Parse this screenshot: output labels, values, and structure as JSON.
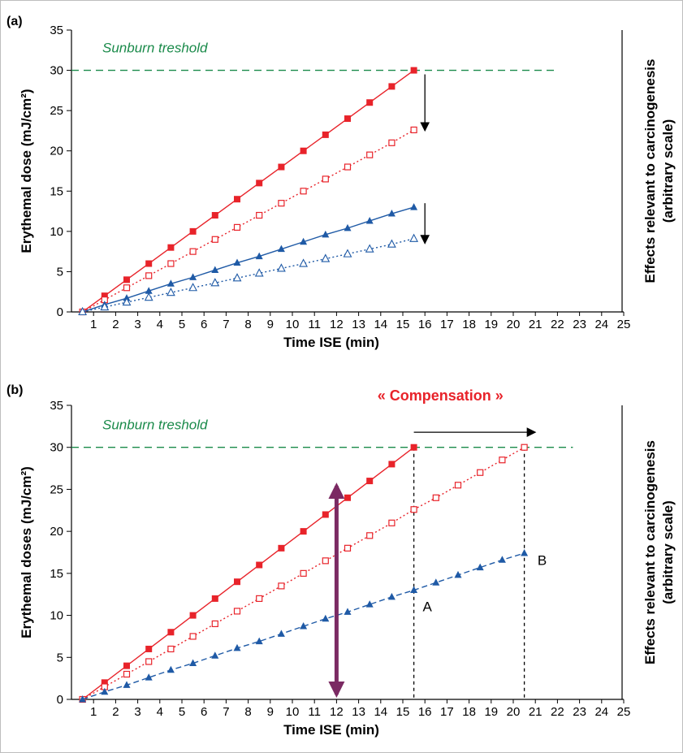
{
  "colors": {
    "red": "#e8232a",
    "blue": "#1f5aa6",
    "green": "#1a8a4a",
    "purple": "#7b2a63",
    "black": "#000000"
  },
  "chart_data": [
    {
      "panel_label": "(a)",
      "type": "line",
      "ylabel": "Erythemal dose (mJ/cm²)",
      "xlabel": "Time ISE (min)",
      "right_label_line1": "Effects relevant to carcinogenesis",
      "right_label_line2": "(arbitrary scale)",
      "threshold_label": "Sunburn treshold",
      "threshold_value": 30,
      "x_ticks": [
        "1",
        "2",
        "3",
        "4",
        "5",
        "6",
        "7",
        "8",
        "9",
        "10",
        "11",
        "12",
        "13",
        "14",
        "15",
        "16",
        "17",
        "18",
        "19",
        "20",
        "21",
        "22",
        "23",
        "24",
        "25"
      ],
      "y_ticks": [
        "0",
        "5",
        "10",
        "15",
        "20",
        "25",
        "30",
        "35"
      ],
      "xlim": [
        0,
        25
      ],
      "ylim": [
        0,
        35
      ],
      "grid": false,
      "series": [
        {
          "x": [
            0.5,
            1.5,
            2.5,
            3.5,
            4.5,
            5.5,
            6.5,
            7.5,
            8.5,
            9.5,
            10.5,
            11.5,
            12.5,
            13.5,
            14.5,
            15.5
          ],
          "values": [
            0,
            2,
            4,
            6,
            8,
            10,
            12,
            14,
            16,
            18,
            20,
            22,
            24,
            26,
            28,
            30
          ],
          "color": "#e8232a",
          "marker": "square-filled",
          "line": "solid"
        },
        {
          "x": [
            0.5,
            1.5,
            2.5,
            3.5,
            4.5,
            5.5,
            6.5,
            7.5,
            8.5,
            9.5,
            10.5,
            11.5,
            12.5,
            13.5,
            14.5,
            15.5
          ],
          "values": [
            0,
            1.5,
            3,
            4.5,
            6,
            7.5,
            9,
            10.5,
            12,
            13.5,
            15,
            16.5,
            18,
            19.5,
            21,
            22.6
          ],
          "color": "#e8232a",
          "marker": "square-open",
          "line": "dotted"
        },
        {
          "x": [
            0.5,
            1.5,
            2.5,
            3.5,
            4.5,
            5.5,
            6.5,
            7.5,
            8.5,
            9.5,
            10.5,
            11.5,
            12.5,
            13.5,
            14.5,
            15.5
          ],
          "values": [
            0,
            0.9,
            1.7,
            2.6,
            3.5,
            4.3,
            5.2,
            6.1,
            6.9,
            7.8,
            8.7,
            9.6,
            10.4,
            11.3,
            12.2,
            13
          ],
          "color": "#1f5aa6",
          "marker": "triangle-filled",
          "line": "solid"
        },
        {
          "x": [
            0.5,
            1.5,
            2.5,
            3.5,
            4.5,
            5.5,
            6.5,
            7.5,
            8.5,
            9.5,
            10.5,
            11.5,
            12.5,
            13.5,
            14.5,
            15.5
          ],
          "values": [
            0,
            0.6,
            1.2,
            1.8,
            2.4,
            3,
            3.6,
            4.2,
            4.8,
            5.4,
            6,
            6.6,
            7.2,
            7.8,
            8.4,
            9.1
          ],
          "color": "#1f5aa6",
          "marker": "triangle-open",
          "line": "dotted"
        }
      ],
      "annotations": [
        {
          "type": "arrow-down",
          "x": 16,
          "from": 29.5,
          "to": 22.5
        },
        {
          "type": "arrow-down",
          "x": 16,
          "from": 13.5,
          "to": 8.5
        }
      ]
    },
    {
      "panel_label": "(b)",
      "type": "line",
      "ylabel": "Erythemal doses (mJ/cm²)",
      "xlabel": "Time ISE (min)",
      "right_label_line1": "Effects relevant to carcinogenesis",
      "right_label_line2": "(arbitrary scale)",
      "threshold_label": "Sunburn treshold",
      "threshold_value": 30,
      "compensation_label": "« Compensation »",
      "point_labels": [
        "A",
        "B"
      ],
      "x_ticks": [
        "1",
        "2",
        "3",
        "4",
        "5",
        "6",
        "7",
        "8",
        "9",
        "10",
        "11",
        "12",
        "13",
        "14",
        "15",
        "16",
        "17",
        "18",
        "19",
        "20",
        "21",
        "22",
        "23",
        "24",
        "25"
      ],
      "y_ticks": [
        "0",
        "5",
        "10",
        "15",
        "20",
        "25",
        "30",
        "35"
      ],
      "xlim": [
        0,
        25
      ],
      "ylim": [
        0,
        35
      ],
      "grid": false,
      "series": [
        {
          "x": [
            0.5,
            1.5,
            2.5,
            3.5,
            4.5,
            5.5,
            6.5,
            7.5,
            8.5,
            9.5,
            10.5,
            11.5,
            12.5,
            13.5,
            14.5,
            15.5
          ],
          "values": [
            0,
            2,
            4,
            6,
            8,
            10,
            12,
            14,
            16,
            18,
            20,
            22,
            24,
            26,
            28,
            30
          ],
          "color": "#e8232a",
          "marker": "square-filled",
          "line": "solid"
        },
        {
          "x": [
            0.5,
            1.5,
            2.5,
            3.5,
            4.5,
            5.5,
            6.5,
            7.5,
            8.5,
            9.5,
            10.5,
            11.5,
            12.5,
            13.5,
            14.5,
            15.5,
            16.5,
            17.5,
            18.5,
            19.5,
            20.5
          ],
          "values": [
            0,
            1.5,
            3,
            4.5,
            6,
            7.5,
            9,
            10.5,
            12,
            13.5,
            15,
            16.5,
            18,
            19.5,
            21,
            22.6,
            24,
            25.5,
            27,
            28.5,
            30
          ],
          "color": "#e8232a",
          "marker": "square-open",
          "line": "dotted"
        },
        {
          "x": [
            0.5,
            1.5,
            2.5,
            3.5,
            4.5,
            5.5,
            6.5,
            7.5,
            8.5,
            9.5,
            10.5,
            11.5,
            12.5,
            13.5,
            14.5,
            15.5,
            16.5,
            17.5,
            18.5,
            19.5,
            20.5
          ],
          "values": [
            0,
            0.9,
            1.7,
            2.6,
            3.5,
            4.3,
            5.2,
            6.1,
            6.9,
            7.8,
            8.7,
            9.6,
            10.4,
            11.3,
            12.2,
            13,
            13.9,
            14.8,
            15.7,
            16.6,
            17.4
          ],
          "color": "#1f5aa6",
          "marker": "triangle-filled",
          "line": "dashed"
        }
      ],
      "annotations": [
        {
          "type": "double-arrow-vertical",
          "x": 12,
          "from": 0,
          "to": 26
        },
        {
          "type": "arrow-right",
          "y": 31.8,
          "from": 15.5,
          "to": 21
        },
        {
          "type": "vline-dashed",
          "x": 15.5,
          "from": 0,
          "to": 30
        },
        {
          "type": "vline-dashed",
          "x": 20.5,
          "from": 0,
          "to": 30
        }
      ]
    }
  ]
}
